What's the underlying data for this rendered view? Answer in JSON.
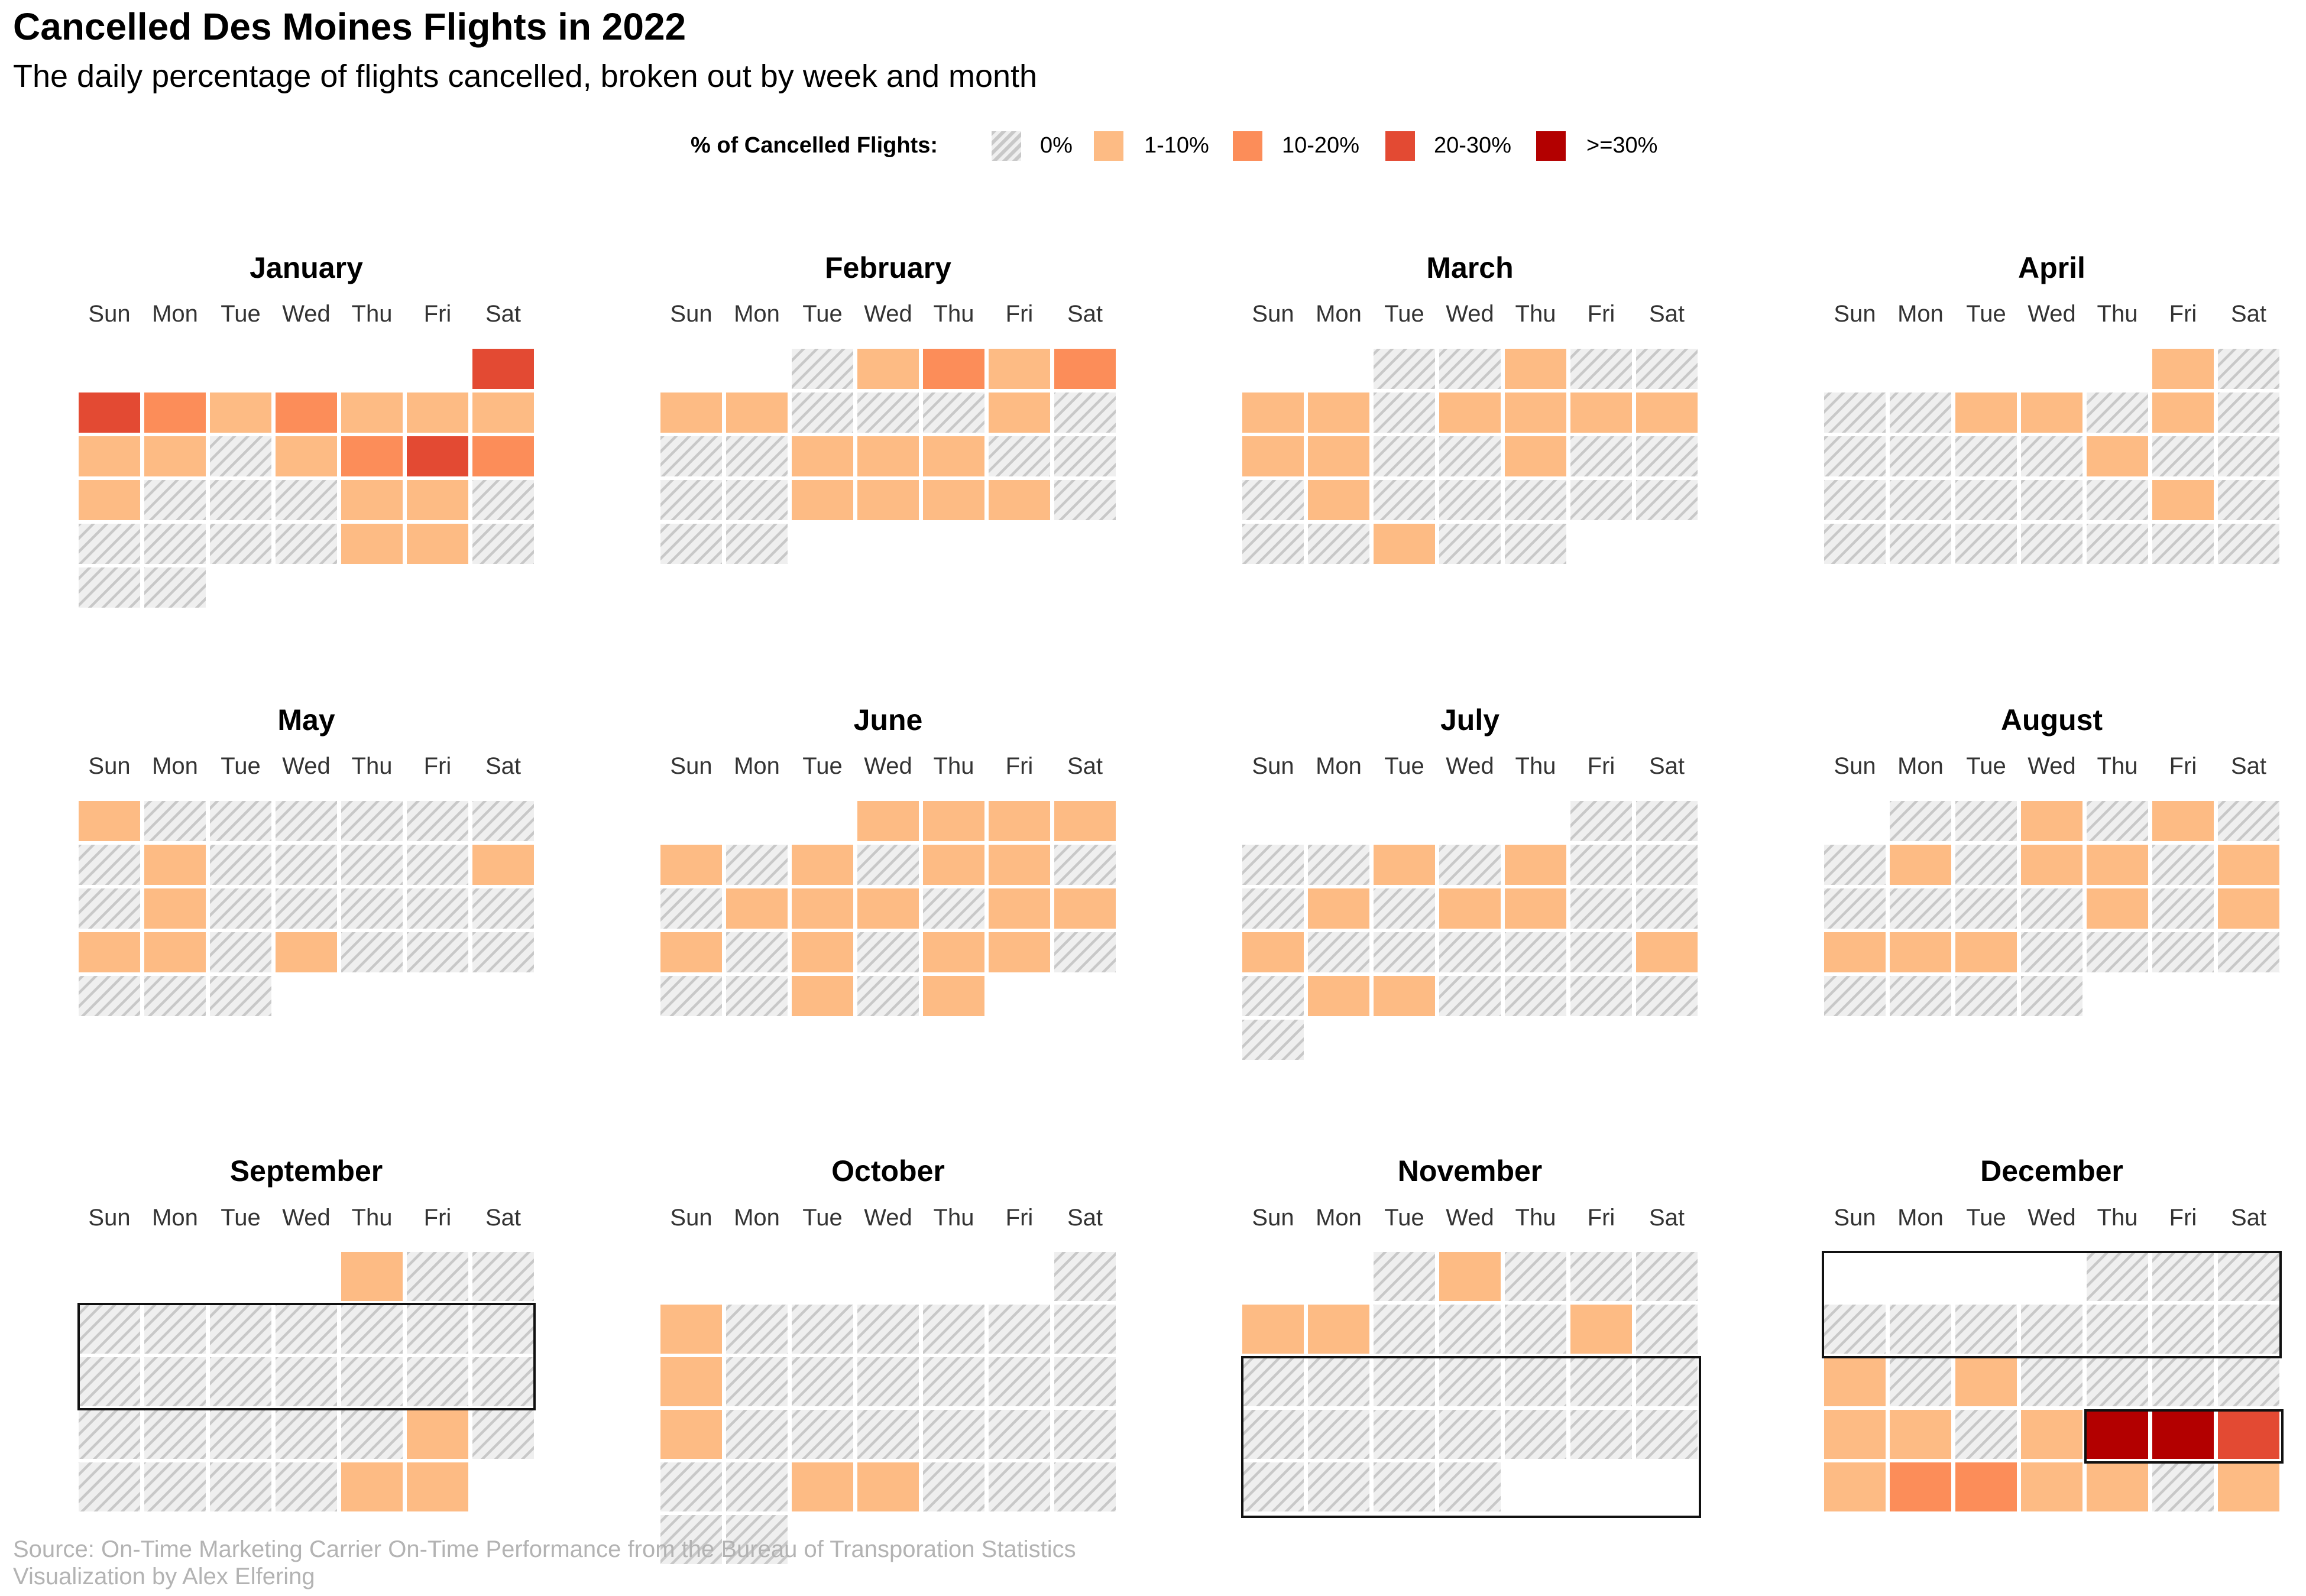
{
  "header": {
    "title": "Cancelled Des Moines Flights in 2022",
    "subtitle": "The daily percentage of flights cancelled, broken out by week and month"
  },
  "legend": {
    "title": "% of Cancelled Flights:",
    "items": [
      {
        "label": "0%",
        "color": "#d9d9d9",
        "hatched": true
      },
      {
        "label": "1-10%",
        "color": "#fdbb84"
      },
      {
        "label": "10-20%",
        "color": "#fc8d59"
      },
      {
        "label": "20-30%",
        "color": "#e34a33"
      },
      {
        "label": ">=30%",
        "color": "#b30000"
      }
    ]
  },
  "footer": {
    "source": "Source: On-Time Marketing Carrier On-Time Performance from the Bureau of Transporation Statistics",
    "credit": "Visualization by Alex Elfering"
  },
  "chart_data": {
    "type": "heatmap",
    "year": 2022,
    "weekdays": [
      "Sun",
      "Mon",
      "Tue",
      "Wed",
      "Thu",
      "Fri",
      "Sat"
    ],
    "category_labels": [
      "0%",
      "1-10%",
      "10-20%",
      "20-30%",
      ">=30%"
    ],
    "months": [
      {
        "name": "January",
        "first_weekday": 6,
        "days": [
          3,
          3,
          2,
          1,
          2,
          1,
          1,
          1,
          1,
          1,
          0,
          1,
          2,
          3,
          2,
          1,
          0,
          0,
          0,
          1,
          1,
          0,
          0,
          0,
          0,
          0,
          1,
          1,
          0,
          0,
          0
        ]
      },
      {
        "name": "February",
        "first_weekday": 2,
        "days": [
          0,
          1,
          2,
          1,
          2,
          1,
          1,
          0,
          0,
          0,
          1,
          0,
          0,
          0,
          1,
          1,
          1,
          0,
          0,
          0,
          0,
          1,
          1,
          1,
          1,
          0,
          0,
          0
        ]
      },
      {
        "name": "March",
        "first_weekday": 2,
        "days": [
          0,
          0,
          1,
          0,
          0,
          1,
          1,
          0,
          1,
          1,
          1,
          1,
          1,
          1,
          0,
          0,
          1,
          0,
          0,
          0,
          1,
          0,
          0,
          0,
          0,
          0,
          0,
          0,
          1,
          0,
          0
        ]
      },
      {
        "name": "April",
        "first_weekday": 5,
        "days": [
          1,
          0,
          0,
          0,
          1,
          1,
          0,
          1,
          0,
          0,
          0,
          0,
          0,
          1,
          0,
          0,
          0,
          0,
          0,
          0,
          0,
          1,
          0,
          0,
          0,
          0,
          0,
          0,
          0,
          0
        ]
      },
      {
        "name": "May",
        "first_weekday": 0,
        "days": [
          1,
          0,
          0,
          0,
          0,
          0,
          0,
          0,
          1,
          0,
          0,
          0,
          0,
          1,
          0,
          1,
          0,
          0,
          0,
          0,
          0,
          1,
          1,
          0,
          1,
          0,
          0,
          0,
          0,
          0,
          0
        ]
      },
      {
        "name": "June",
        "first_weekday": 3,
        "days": [
          1,
          1,
          1,
          1,
          1,
          0,
          1,
          0,
          1,
          1,
          0,
          0,
          1,
          1,
          1,
          0,
          1,
          1,
          1,
          0,
          1,
          0,
          1,
          1,
          0,
          0,
          0,
          1,
          0,
          1
        ]
      },
      {
        "name": "July",
        "first_weekday": 5,
        "days": [
          0,
          0,
          0,
          0,
          1,
          0,
          1,
          0,
          0,
          0,
          1,
          0,
          1,
          1,
          0,
          0,
          1,
          0,
          0,
          0,
          0,
          0,
          1,
          0,
          1,
          1,
          0,
          0,
          0,
          0,
          0
        ]
      },
      {
        "name": "August",
        "first_weekday": 1,
        "days": [
          0,
          0,
          1,
          0,
          1,
          0,
          0,
          1,
          0,
          1,
          1,
          0,
          1,
          0,
          0,
          0,
          0,
          1,
          0,
          1,
          1,
          1,
          1,
          0,
          0,
          0,
          0,
          0,
          0,
          0,
          0
        ]
      },
      {
        "name": "September",
        "first_weekday": 4,
        "days": [
          1,
          0,
          0,
          0,
          0,
          0,
          0,
          0,
          0,
          0,
          0,
          0,
          0,
          0,
          0,
          0,
          0,
          0,
          0,
          0,
          0,
          0,
          1,
          0,
          0,
          0,
          0,
          0,
          1,
          1
        ]
      },
      {
        "name": "October",
        "first_weekday": 6,
        "days": [
          0,
          1,
          0,
          0,
          0,
          0,
          0,
          0,
          1,
          0,
          0,
          0,
          0,
          0,
          0,
          1,
          0,
          0,
          0,
          0,
          0,
          0,
          0,
          0,
          1,
          1,
          0,
          0,
          0,
          0,
          0
        ]
      },
      {
        "name": "November",
        "first_weekday": 2,
        "days": [
          0,
          1,
          0,
          0,
          0,
          1,
          1,
          0,
          0,
          0,
          1,
          0,
          0,
          0,
          0,
          0,
          0,
          0,
          0,
          0,
          0,
          0,
          0,
          0,
          0,
          0,
          0,
          0,
          0,
          0
        ]
      },
      {
        "name": "December",
        "first_weekday": 4,
        "days": [
          0,
          0,
          0,
          0,
          0,
          0,
          0,
          0,
          0,
          0,
          1,
          0,
          1,
          0,
          0,
          0,
          0,
          1,
          1,
          0,
          1,
          4,
          4,
          3,
          1,
          2,
          2,
          1,
          1,
          0,
          1
        ]
      }
    ]
  }
}
